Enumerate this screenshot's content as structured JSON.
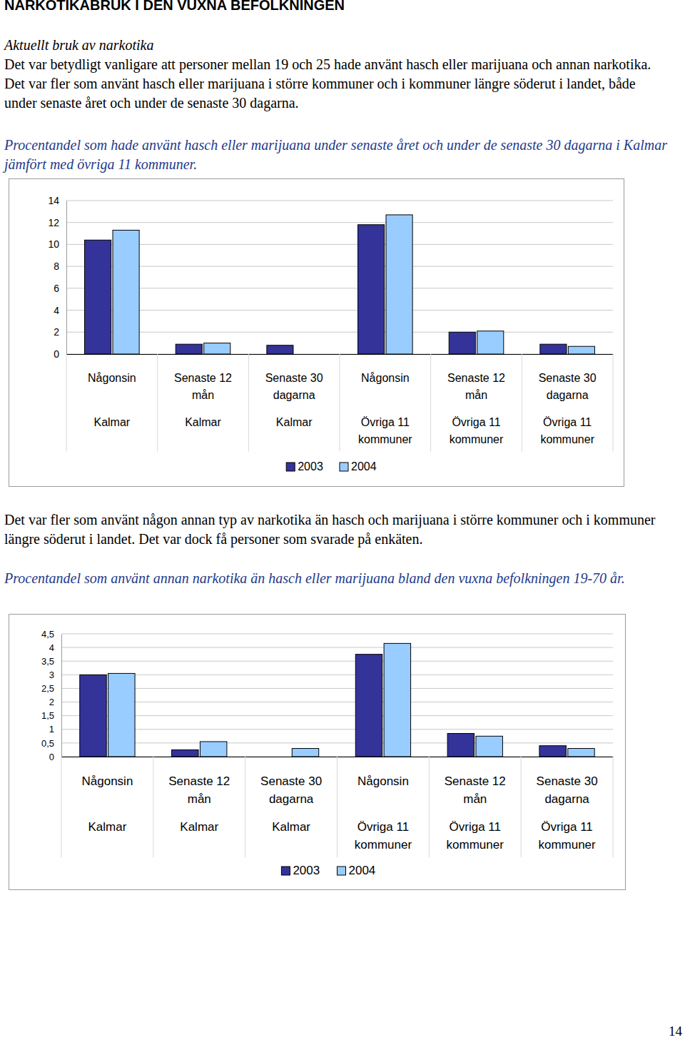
{
  "document": {
    "heading": "NARKOTIKABRUK I DEN VUXNA BEFOLKNINGEN",
    "subheading": "Aktuellt bruk av narkotika",
    "paragraphs": [
      "Det var betydligt vanligare att personer mellan 19 och 25 hade använt hasch eller marijuana och annan narkotika. Det var fler som använt hasch eller marijuana i större kommuner och i kommuner längre söderut i landet, både under senaste året och under de senaste 30 dagarna.",
      "Det var fler som använt någon annan typ av narkotika än hasch och marijuana i större kommuner och i kommuner längre söderut i landet. Det var dock få personer som svarade på enkäten."
    ],
    "page_number": "14"
  },
  "chart_data": [
    {
      "type": "bar",
      "title": "Procentandel som hade använt hasch eller marijuana under senaste året och under de senaste 30 dagarna i Kalmar jämfört med övriga 11 kommuner.",
      "categories": [
        "Någonsin",
        "Senaste 12 mån",
        "Senaste 30 dagarna",
        "Någonsin",
        "Senaste 12 mån",
        "Senaste 30 dagarna"
      ],
      "category_groups": [
        "Kalmar",
        "Kalmar",
        "Kalmar",
        "Övriga 11 kommuner",
        "Övriga 11 kommuner",
        "Övriga 11 kommuner"
      ],
      "series": [
        {
          "name": "2003",
          "color": "#333399",
          "values": [
            10.4,
            0.9,
            0.8,
            11.8,
            2.0,
            0.9
          ]
        },
        {
          "name": "2004",
          "color": "#99ccff",
          "values": [
            11.3,
            1.0,
            0,
            12.7,
            2.1,
            0.7
          ]
        }
      ],
      "ylim": [
        0,
        14
      ],
      "yticks": [
        0,
        2,
        4,
        6,
        8,
        10,
        12,
        14
      ],
      "grid": true,
      "legend": "bottom"
    },
    {
      "type": "bar",
      "title": "Procentandel som använt annan narkotika än hasch eller marijuana bland den vuxna befolkningen 19-70 år.",
      "categories": [
        "Någonsin",
        "Senaste 12 mån",
        "Senaste 30 dagarna",
        "Någonsin",
        "Senaste 12 mån",
        "Senaste 30 dagarna"
      ],
      "category_groups": [
        "Kalmar",
        "Kalmar",
        "Kalmar",
        "Övriga 11 kommuner",
        "Övriga 11 kommuner",
        "Övriga 11 kommuner"
      ],
      "series": [
        {
          "name": "2003",
          "color": "#333399",
          "values": [
            3.0,
            0.25,
            0,
            3.75,
            0.85,
            0.4
          ]
        },
        {
          "name": "2004",
          "color": "#99ccff",
          "values": [
            3.05,
            0.55,
            0.3,
            4.15,
            0.75,
            0.3
          ]
        }
      ],
      "ylim": [
        0,
        4.5
      ],
      "yticks": [
        0,
        {
          "value": 0.5,
          "label": "0,5"
        },
        1,
        {
          "value": 1.5,
          "label": "1,5"
        },
        2,
        {
          "value": 2.5,
          "label": "2,5"
        },
        3,
        {
          "value": 3.5,
          "label": "3,5"
        },
        4,
        {
          "value": 4.5,
          "label": "4,5"
        }
      ],
      "grid": true,
      "legend": "bottom"
    }
  ]
}
